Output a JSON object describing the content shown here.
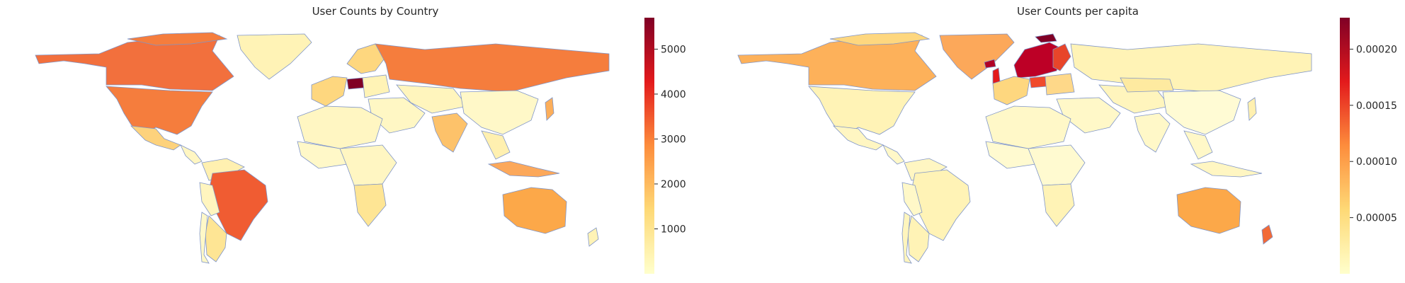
{
  "maps": [
    {
      "title": "User Counts by Country",
      "colorbar": {
        "min": 0,
        "max": 5700,
        "ticks": [
          1000,
          2000,
          3000,
          4000,
          5000
        ],
        "tick_labels": [
          "1000",
          "2000",
          "3000",
          "4000",
          "5000"
        ],
        "colormap": "YlOrRd"
      },
      "regions": [
        {
          "name": "Canada",
          "value": 3300
        },
        {
          "name": "United States",
          "value": 3000
        },
        {
          "name": "Mexico",
          "value": 1600
        },
        {
          "name": "Brazil",
          "value": 3400
        },
        {
          "name": "Argentina",
          "value": 1400
        },
        {
          "name": "Russia",
          "value": 3000
        },
        {
          "name": "Poland",
          "value": 5700
        },
        {
          "name": "Australia",
          "value": 2300
        },
        {
          "name": "India",
          "value": 1900
        },
        {
          "name": "Indonesia",
          "value": 2200
        }
      ]
    },
    {
      "title": "User Counts per capita",
      "colorbar": {
        "min": 0,
        "max": 0.000228,
        "ticks": [
          5e-05,
          0.0001,
          0.00015,
          0.0002
        ],
        "tick_labels": [
          "0.00005",
          "0.00010",
          "0.00015",
          "0.00020"
        ],
        "colormap": "YlOrRd"
      },
      "regions": [
        {
          "name": "Canada",
          "value": 8e-05
        },
        {
          "name": "Greenland",
          "value": 9e-05
        },
        {
          "name": "Norway",
          "value": 0.00021
        },
        {
          "name": "Sweden",
          "value": 0.00022
        },
        {
          "name": "Finland",
          "value": 0.00017
        },
        {
          "name": "Iceland",
          "value": 0.00022
        },
        {
          "name": "Poland",
          "value": 0.00016
        },
        {
          "name": "Australia",
          "value": 9e-05
        },
        {
          "name": "New Zealand",
          "value": 0.00013
        }
      ]
    }
  ]
}
